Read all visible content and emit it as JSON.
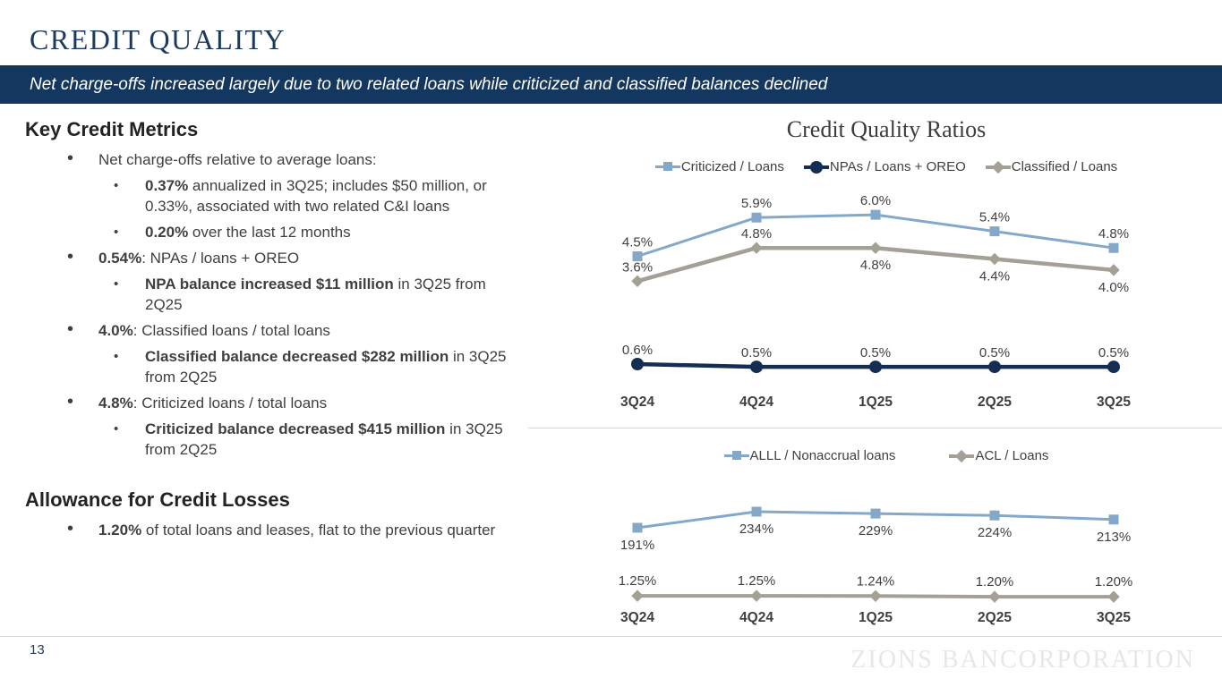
{
  "slide": {
    "title": "CREDIT QUALITY",
    "banner": "Net charge-offs increased largely due to two related loans while criticized and classified balances declined",
    "page_number": "13",
    "watermark": "ZIONS BANCORPORATION"
  },
  "left": {
    "section1_heading": "Key Credit Metrics",
    "section2_heading": "Allowance for Credit Losses",
    "bullets": [
      {
        "level": 1,
        "lead": "",
        "rest": "Net charge-offs relative to average loans:"
      },
      {
        "level": 2,
        "lead": "0.37%",
        "rest": " annualized in 3Q25; includes $50 million, or 0.33%, associated with two related C&I loans"
      },
      {
        "level": 2,
        "lead": "0.20%",
        "rest": " over the last 12 months"
      },
      {
        "level": 1,
        "lead": "0.54%",
        "rest": ": NPAs / loans + OREO"
      },
      {
        "level": 2,
        "lead": "NPA balance increased $11 million",
        "rest": " in 3Q25 from 2Q25"
      },
      {
        "level": 1,
        "lead": "4.0%",
        "rest": ": Classified loans / total loans"
      },
      {
        "level": 2,
        "lead": "Classified balance decreased $282 million",
        "rest": " in 3Q25 from 2Q25"
      },
      {
        "level": 1,
        "lead": "4.8%",
        "rest": ": Criticized loans / total loans"
      },
      {
        "level": 2,
        "lead": "Criticized balance decreased $415 million",
        "rest": " in 3Q25 from 2Q25"
      }
    ],
    "acl_bullet": {
      "level": 1,
      "lead": "1.20%",
      "rest": " of total loans and leases, flat to the previous quarter"
    }
  },
  "chart_data": [
    {
      "type": "line",
      "title": "Credit Quality Ratios",
      "categories": [
        "3Q24",
        "4Q24",
        "1Q25",
        "2Q25",
        "3Q25"
      ],
      "series": [
        {
          "name": "Criticized / Loans",
          "marker": "square",
          "color": "#84a8ca",
          "values": [
            4.5,
            5.9,
            6.0,
            5.4,
            4.8
          ],
          "labels": [
            "4.5%",
            "5.9%",
            "6.0%",
            "5.4%",
            "4.8%"
          ],
          "label_pos": [
            "above",
            "above",
            "above",
            "above",
            "above"
          ]
        },
        {
          "name": "NPAs / Loans + OREO",
          "marker": "circle",
          "color": "#132e52",
          "values": [
            0.6,
            0.5,
            0.5,
            0.5,
            0.5
          ],
          "labels": [
            "0.6%",
            "0.5%",
            "0.5%",
            "0.5%",
            "0.5%"
          ],
          "label_pos": [
            "above",
            "above",
            "above",
            "above",
            "above"
          ]
        },
        {
          "name": "Classified / Loans",
          "marker": "diamond",
          "color": "#a5a095",
          "values": [
            3.6,
            4.8,
            4.8,
            4.4,
            4.0
          ],
          "labels": [
            "3.6%",
            "4.8%",
            "4.8%",
            "4.4%",
            "4.0%"
          ],
          "label_pos": [
            "above",
            "above",
            "below",
            "below",
            "below"
          ]
        }
      ],
      "ylim": [
        0,
        6.5
      ],
      "grid": false,
      "legend_position": "top",
      "data_labels": true
    },
    {
      "type": "line",
      "title": "",
      "categories": [
        "3Q24",
        "4Q24",
        "1Q25",
        "2Q25",
        "3Q25"
      ],
      "series": [
        {
          "name": "ALLL / Nonaccrual loans",
          "marker": "square",
          "color": "#84a8ca",
          "values": [
            191,
            234,
            229,
            224,
            213
          ],
          "labels": [
            "191%",
            "234%",
            "229%",
            "224%",
            "213%"
          ],
          "label_pos": [
            "below",
            "below",
            "below",
            "below",
            "below"
          ]
        },
        {
          "name": "ACL / Loans",
          "marker": "diamond",
          "color": "#a5a095",
          "values": [
            1.25,
            1.25,
            1.24,
            1.2,
            1.2
          ],
          "labels": [
            "1.25%",
            "1.25%",
            "1.24%",
            "1.20%",
            "1.20%"
          ],
          "label_pos": [
            "above",
            "above",
            "above",
            "above",
            "above"
          ]
        }
      ],
      "grid": false,
      "legend_position": "top",
      "data_labels": true
    }
  ],
  "colors": {
    "banner_navy": "#14375f",
    "title_navy": "#1b3a5f",
    "series_blue": "#84a8ca",
    "series_navy": "#132e52",
    "series_gray": "#a5a095",
    "body_text": "#3f3f3f",
    "watermark_gray": "#e7e7e7"
  }
}
